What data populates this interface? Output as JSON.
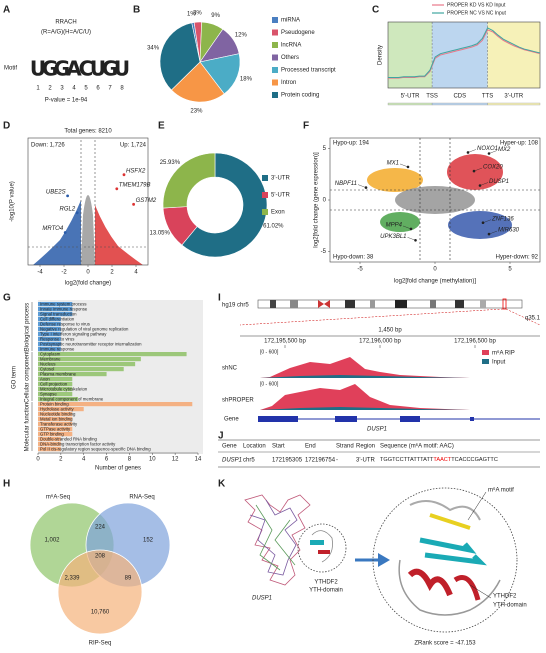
{
  "panel_letters": [
    "A",
    "B",
    "C",
    "D",
    "E",
    "F",
    "G",
    "H",
    "I",
    "J",
    "K"
  ],
  "motif": {
    "consensus": "RRACH",
    "definition": "(R=A/G)(H=A/C/U)",
    "label": "Motif",
    "letters": [
      "U",
      "G",
      "G",
      "A",
      "C",
      "U",
      "G",
      "U"
    ],
    "letter_colors": [
      "#d62728",
      "#f0a020",
      "#f0a020",
      "#2ca02c",
      "#1f77b4",
      "#d62728",
      "#f0a020",
      "#d62728"
    ],
    "positions": [
      1,
      2,
      3,
      4,
      5,
      6,
      7,
      8
    ],
    "p_value": "P-value = 1e-94"
  },
  "pie": {
    "type": "pie",
    "categories": [
      "miRNA",
      "Pseudogene",
      "lncRNA",
      "Others",
      "Processed transcript",
      "Intron",
      "Protein coding"
    ],
    "values": [
      1,
      3,
      9,
      12,
      18,
      23,
      34
    ],
    "value_labels": [
      "1%",
      "3%",
      "9%",
      "12%",
      "18%",
      "23%",
      "34%"
    ],
    "colors": [
      "#4a7fc1",
      "#d9546b",
      "#8db54b",
      "#8064a2",
      "#4bacc6",
      "#f79646",
      "#1f6e86"
    ]
  },
  "density": {
    "type": "line",
    "ylabel": "Density",
    "regions": [
      "5'-UTR",
      "CDS",
      "3'-UTR"
    ],
    "region_colors": [
      "#cfe8bd",
      "#bcd6ef",
      "#f6f1b8"
    ],
    "boundaries": [
      "TSS",
      "TTS"
    ],
    "ylim": [
      0,
      1
    ],
    "series": [
      {
        "name": "PROPER KD VS KD Input",
        "color": "#e8788a",
        "values": [
          0.15,
          0.15,
          0.15,
          0.16,
          0.16,
          0.16,
          0.17,
          0.17,
          0.25,
          0.45,
          0.5,
          0.52,
          0.54,
          0.56,
          0.58,
          0.6,
          0.62,
          0.65,
          0.72,
          0.88,
          0.85,
          0.78,
          0.72,
          0.68,
          0.64,
          0.61,
          0.58,
          0.56,
          0.54,
          0.52
        ]
      },
      {
        "name": "PROPER NC VS NC Input",
        "color": "#3fa6a0",
        "values": [
          0.16,
          0.16,
          0.16,
          0.17,
          0.17,
          0.17,
          0.18,
          0.18,
          0.27,
          0.47,
          0.52,
          0.54,
          0.56,
          0.58,
          0.6,
          0.62,
          0.64,
          0.67,
          0.75,
          0.91,
          0.87,
          0.8,
          0.74,
          0.7,
          0.66,
          0.62,
          0.59,
          0.57,
          0.55,
          0.53
        ]
      }
    ]
  },
  "volcano": {
    "type": "scatter",
    "title": "Total genes: 8210",
    "down": "Down: 1,726",
    "up": "Up: 1,724",
    "xlabel": "log2(fold change)",
    "ylabel": "-log10(P value)",
    "xlim": [
      -5,
      5
    ],
    "ylim": [
      0,
      9
    ],
    "xticks": [
      -4,
      -2,
      0,
      2,
      4
    ],
    "labels": [
      "HSFX2",
      "TMEM179B",
      "GSTM2",
      "UBE2S",
      "RGL2",
      "MRTO4"
    ],
    "x": [
      3,
      2.4,
      3.8,
      -1.7,
      -0.9,
      -1.9
    ],
    "y": [
      6.4,
      5.4,
      4.3,
      4.9,
      3.7,
      2.3
    ],
    "colors": [
      "#d33",
      "#d33",
      "#d33",
      "#2a5caa",
      "#2a5caa",
      "#2a5caa"
    ]
  },
  "donut": {
    "type": "pie",
    "categories": [
      "3'-UTR",
      "5'-UTR",
      "Exon"
    ],
    "values": [
      61.02,
      13.05,
      25.93
    ],
    "value_labels": [
      "61.02%",
      "13.05%",
      "25.93%"
    ],
    "colors": [
      "#1f6e86",
      "#d9435b",
      "#8db54b"
    ]
  },
  "quadrant": {
    "type": "scatter",
    "xlabel": "log2[fold change (methylation)]",
    "ylabel": "log2[fold change (gene expression)]",
    "xlim": [
      -7,
      7
    ],
    "ylim": [
      -6,
      6
    ],
    "xticks": [
      -5,
      0,
      5
    ],
    "yticks": [
      -5,
      0,
      5
    ],
    "hypo_up": "Hypo-up: 194",
    "hyper_up": "Hyper-up: 108",
    "hypo_down": "Hypo-down: 38",
    "hyper_down": "Hyper-down: 92",
    "labels": [
      "NOXO1",
      "MX2",
      "MX1",
      "COX20",
      "NBPF11",
      "DUSP1",
      "ZNF136",
      "MIR630",
      "MPP4",
      "UPK3BL1"
    ],
    "x": [
      2.2,
      3.6,
      -1.8,
      2.6,
      -4.6,
      3,
      3.2,
      3.6,
      -1.6,
      -1.3
    ],
    "y": [
      4.6,
      4.5,
      3.2,
      2.8,
      1.2,
      1.4,
      -2.2,
      -3.3,
      -2.8,
      -3.9
    ]
  },
  "go": {
    "type": "bar",
    "xlabel": "Number of genes",
    "ylabel": "GO term",
    "xlim": [
      0,
      14
    ],
    "xticks": [
      0,
      2,
      4,
      6,
      8,
      10,
      12,
      14
    ],
    "groups": [
      {
        "name": "Biological process",
        "color": "#5b9bd5",
        "text_color": "#1f4e8c",
        "terms": [
          "Immune system process",
          "Innate immune response",
          "Signal transduction",
          "Cell differentiation",
          "Defense response to virus",
          "Negative regulation of viral genome replication",
          "Type I interferon signaling pathway",
          "Response to virus",
          "Postsynaptic neurotransmitter receptor internalization",
          "Immune response"
        ],
        "values": [
          3,
          3,
          3,
          2,
          2,
          2,
          2,
          2,
          2,
          2
        ]
      },
      {
        "name": "Cellular component",
        "color": "#9cc77a",
        "text_color": "#3d6b1f",
        "terms": [
          "Cytoplasm",
          "Membrane",
          "Nucleus",
          "Cytosol",
          "Plasma membrane",
          "Axon",
          "Cell projection",
          "Microtubule cytoskeleton",
          "Synapse",
          "Integral component of membrane"
        ],
        "values": [
          13,
          9,
          8.5,
          7.5,
          6,
          3,
          3,
          3,
          3,
          3.5
        ]
      },
      {
        "name": "Molecular function",
        "color": "#f4b183",
        "text_color": "#b35a10",
        "terms": [
          "Protein binding",
          "Hydrolase activity",
          "Nucleotide binding",
          "Metal ion binding",
          "Transferase activity",
          "GTPase activity",
          "GTP binding",
          "Double-stranded RNA binding",
          "DNA-binding transcription factor activity",
          "Pol II cis-regulatory region sequence-specific DNA binding"
        ],
        "values": [
          13.5,
          4,
          3,
          3,
          3,
          3,
          3,
          2,
          2,
          2
        ]
      }
    ]
  },
  "track": {
    "genome": "hg19 chr5",
    "band": "q35.1",
    "span": "1,450 bp",
    "positions": [
      "172,195,500 bp",
      "172,196,000 bp",
      "172,196,500 bp"
    ],
    "legend": [
      "m⁶A RIP",
      "Input"
    ],
    "legend_colors": [
      "#e0405a",
      "#1f6e86"
    ],
    "samples": [
      "shNC",
      "shPROPER"
    ],
    "range": "[0 - 600]",
    "gene_label": "Gene",
    "gene": "DUSP1"
  },
  "table": {
    "columns": [
      "Gene",
      "Location",
      "Start",
      "End",
      "Strand",
      "Region",
      "Sequence (m⁶A motif: AAC)"
    ],
    "row": [
      "DUSP1",
      "chr5",
      "172195305",
      "172196754",
      "-",
      "3'-UTR"
    ],
    "sequence": [
      "TGGTCCTTATTTATT",
      "TAACT",
      "TCACCCGAGTTC"
    ]
  },
  "venn": {
    "sets": [
      "m⁶A-Seq",
      "RNA-Seq",
      "RIP-Seq"
    ],
    "colors": [
      "#8fc46a",
      "#7fa3db",
      "#f5b27a"
    ],
    "counts": [
      {
        "value": 1002,
        "label": "1,002"
      },
      224,
      152,
      208,
      {
        "value": 2339,
        "label": "2,339"
      },
      89,
      {
        "value": 10760,
        "label": "10,760"
      }
    ]
  },
  "structure": {
    "rna": "DUSP1",
    "protein": "YTHDF2",
    "domain": "YTH-domain",
    "motif": "m⁶A motif",
    "score": "ZRank score = -47.153"
  }
}
